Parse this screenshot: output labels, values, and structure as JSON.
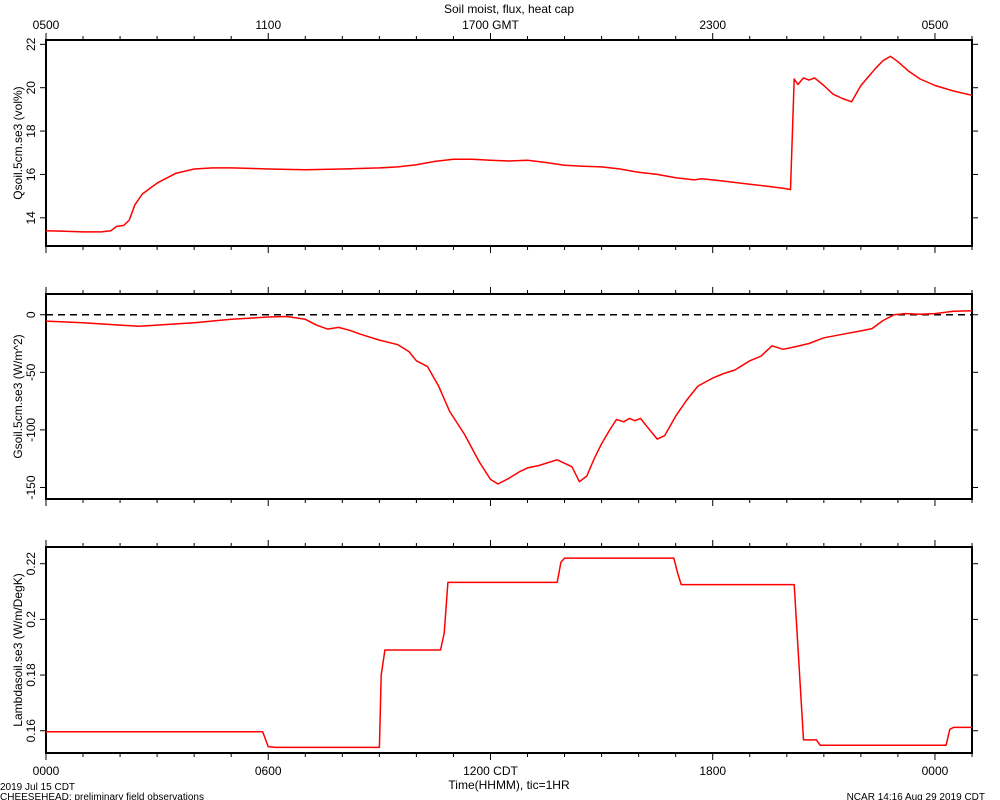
{
  "chart_data": [
    {
      "type": "line",
      "title": "Soil moist, flux, heat cap",
      "top_axis": {
        "ticks": [
          "0500",
          "1100",
          "1700 GMT",
          "2300",
          "0500"
        ]
      },
      "ylabel": "Qsoil.5cm.se3 (vol%)",
      "ylim": [
        12.7,
        22.2
      ],
      "yticks": [
        14,
        16,
        18,
        20,
        22
      ],
      "series": [
        {
          "color": "#ff0000",
          "points": [
            [
              0,
              13.4
            ],
            [
              0.5,
              13.38
            ],
            [
              1,
              13.35
            ],
            [
              1.5,
              13.35
            ],
            [
              1.75,
              13.4
            ],
            [
              1.9,
              13.6
            ],
            [
              2.1,
              13.65
            ],
            [
              2.25,
              13.9
            ],
            [
              2.4,
              14.6
            ],
            [
              2.6,
              15.1
            ],
            [
              3.0,
              15.6
            ],
            [
              3.5,
              16.05
            ],
            [
              4.0,
              16.25
            ],
            [
              4.5,
              16.3
            ],
            [
              5.0,
              16.3
            ],
            [
              5.5,
              16.28
            ],
            [
              6,
              16.25
            ],
            [
              7,
              16.22
            ],
            [
              8,
              16.25
            ],
            [
              9,
              16.3
            ],
            [
              9.5,
              16.35
            ],
            [
              10,
              16.45
            ],
            [
              10.5,
              16.6
            ],
            [
              11,
              16.7
            ],
            [
              11.5,
              16.7
            ],
            [
              12,
              16.65
            ],
            [
              12.5,
              16.62
            ],
            [
              13,
              16.65
            ],
            [
              13.5,
              16.55
            ],
            [
              14,
              16.42
            ],
            [
              14.5,
              16.38
            ],
            [
              15,
              16.35
            ],
            [
              15.5,
              16.25
            ],
            [
              16,
              16.1
            ],
            [
              16.5,
              16.0
            ],
            [
              17,
              15.85
            ],
            [
              17.5,
              15.75
            ],
            [
              17.7,
              15.8
            ],
            [
              18,
              15.75
            ],
            [
              18.5,
              15.65
            ],
            [
              19,
              15.55
            ],
            [
              19.5,
              15.45
            ],
            [
              19.95,
              15.35
            ],
            [
              20.1,
              15.3
            ],
            [
              20.2,
              20.4
            ],
            [
              20.3,
              20.15
            ],
            [
              20.45,
              20.45
            ],
            [
              20.6,
              20.35
            ],
            [
              20.75,
              20.45
            ],
            [
              21.0,
              20.1
            ],
            [
              21.25,
              19.7
            ],
            [
              21.5,
              19.5
            ],
            [
              21.75,
              19.35
            ],
            [
              22.0,
              20.1
            ],
            [
              22.2,
              20.5
            ],
            [
              22.4,
              20.9
            ],
            [
              22.6,
              21.25
            ],
            [
              22.8,
              21.45
            ],
            [
              23.0,
              21.2
            ],
            [
              23.3,
              20.75
            ],
            [
              23.6,
              20.4
            ],
            [
              24.0,
              20.1
            ],
            [
              24.5,
              19.85
            ],
            [
              25,
              19.65
            ]
          ]
        }
      ]
    },
    {
      "type": "line",
      "ylabel": "Gsoil.5cm.se3 (W/m^2)",
      "ylim": [
        -160,
        18
      ],
      "yticks": [
        0,
        -50,
        -100,
        -150
      ],
      "zero_line": true,
      "series": [
        {
          "color": "#ff0000",
          "points": [
            [
              0,
              -5.5
            ],
            [
              1,
              -7
            ],
            [
              2,
              -9
            ],
            [
              2.5,
              -10
            ],
            [
              3,
              -9
            ],
            [
              4,
              -7
            ],
            [
              5,
              -4
            ],
            [
              6,
              -2
            ],
            [
              6.5,
              -1.5
            ],
            [
              7.0,
              -4
            ],
            [
              7.3,
              -9
            ],
            [
              7.6,
              -12.5
            ],
            [
              7.9,
              -11
            ],
            [
              8.2,
              -13.5
            ],
            [
              8.5,
              -17
            ],
            [
              9,
              -22
            ],
            [
              9.5,
              -26
            ],
            [
              9.8,
              -32
            ],
            [
              10.0,
              -40
            ],
            [
              10.3,
              -45
            ],
            [
              10.6,
              -62
            ],
            [
              10.9,
              -84
            ],
            [
              11.3,
              -104
            ],
            [
              11.7,
              -128
            ],
            [
              12.0,
              -143
            ],
            [
              12.2,
              -147
            ],
            [
              12.5,
              -142
            ],
            [
              12.8,
              -136
            ],
            [
              13.0,
              -133
            ],
            [
              13.3,
              -131
            ],
            [
              13.6,
              -128
            ],
            [
              13.8,
              -126
            ],
            [
              14.0,
              -129
            ],
            [
              14.2,
              -132
            ],
            [
              14.4,
              -145
            ],
            [
              14.6,
              -140
            ],
            [
              14.8,
              -125
            ],
            [
              15.0,
              -112
            ],
            [
              15.2,
              -101
            ],
            [
              15.4,
              -91
            ],
            [
              15.6,
              -93
            ],
            [
              15.75,
              -90
            ],
            [
              15.9,
              -92
            ],
            [
              16.05,
              -90
            ],
            [
              16.2,
              -96
            ],
            [
              16.5,
              -108
            ],
            [
              16.7,
              -105
            ],
            [
              17.0,
              -88
            ],
            [
              17.3,
              -74
            ],
            [
              17.6,
              -62
            ],
            [
              18.0,
              -55
            ],
            [
              18.3,
              -51
            ],
            [
              18.6,
              -48
            ],
            [
              19.0,
              -40
            ],
            [
              19.3,
              -36
            ],
            [
              19.6,
              -27
            ],
            [
              19.9,
              -30
            ],
            [
              20.2,
              -28
            ],
            [
              20.6,
              -25
            ],
            [
              21.0,
              -20
            ],
            [
              21.5,
              -17
            ],
            [
              22.0,
              -14
            ],
            [
              22.3,
              -12
            ],
            [
              22.6,
              -5
            ],
            [
              22.9,
              0
            ],
            [
              23.2,
              1
            ],
            [
              23.6,
              0.5
            ],
            [
              24.0,
              1
            ],
            [
              24.5,
              3
            ],
            [
              25,
              3.5
            ]
          ]
        }
      ]
    },
    {
      "type": "line",
      "ylabel": "Lambdasoil.se3 (W/m/DegK)",
      "ylim": [
        0.152,
        0.226
      ],
      "yticks": [
        0.16,
        0.18,
        0.2,
        0.22
      ],
      "xlabel": "Time(HHMM), tic=1HR",
      "x_ticks": [
        "0000",
        "0600",
        "1200 CDT",
        "1800",
        "0000"
      ],
      "series": [
        {
          "color": "#ff0000",
          "points": [
            [
              0,
              0.1596
            ],
            [
              5.85,
              0.1596
            ],
            [
              6.0,
              0.1543
            ],
            [
              6.2,
              0.154
            ],
            [
              9,
              0.154
            ],
            [
              9.05,
              0.18
            ],
            [
              9.15,
              0.189
            ],
            [
              10.65,
              0.189
            ],
            [
              10.75,
              0.195
            ],
            [
              10.85,
              0.2133
            ],
            [
              13.8,
              0.2133
            ],
            [
              13.9,
              0.2205
            ],
            [
              14.0,
              0.222
            ],
            [
              16.95,
              0.222
            ],
            [
              17.05,
              0.2168
            ],
            [
              17.15,
              0.2125
            ],
            [
              20.2,
              0.2125
            ],
            [
              20.45,
              0.1567
            ],
            [
              20.8,
              0.1567
            ],
            [
              20.9,
              0.1548
            ],
            [
              24.3,
              0.1548
            ],
            [
              24.4,
              0.1605
            ],
            [
              24.5,
              0.1612
            ],
            [
              25,
              0.1612
            ]
          ]
        }
      ]
    }
  ],
  "footer": {
    "left_date": "2019 Jul 15 CDT",
    "left_note": "CHEESEHEAD: preliminary field observations",
    "right_note": "NCAR 14:16 Aug 29 2019 CDT"
  }
}
